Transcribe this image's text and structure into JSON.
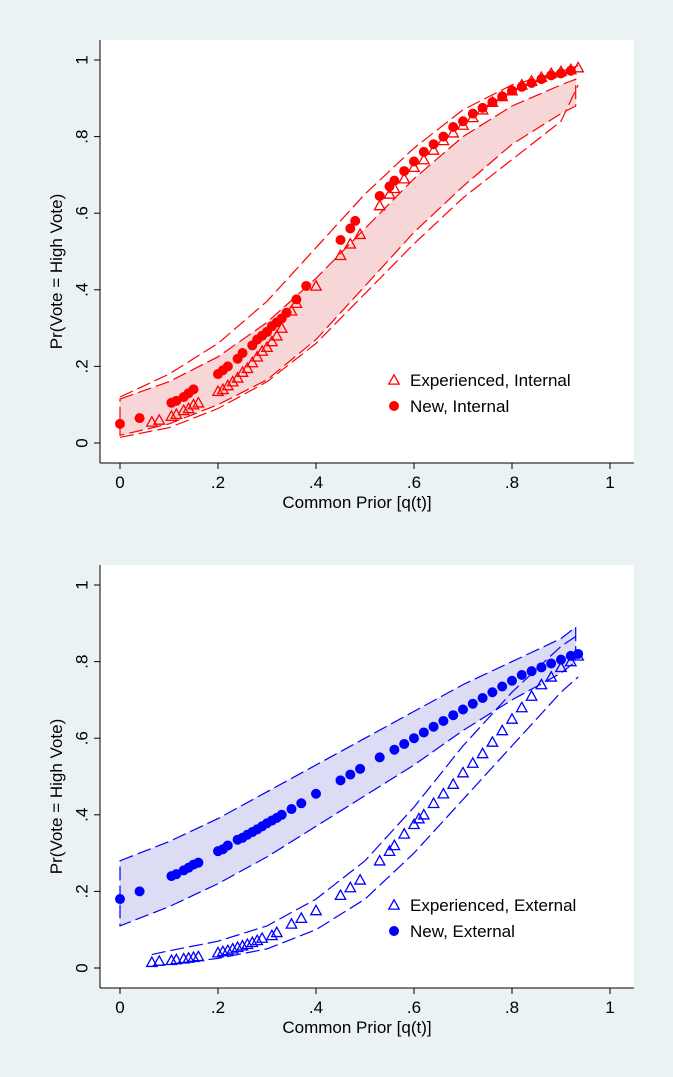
{
  "colors": {
    "page_bg": "#eaf2f3",
    "plot_bg": "#ffffff",
    "internal": "#ff0000",
    "internal_fill": "#f6d6d6",
    "external": "#0000ff",
    "external_fill": "#dcdcf4"
  },
  "chart_data": [
    {
      "type": "scatter",
      "title": "",
      "xlabel": "Common Prior [q(t)]",
      "ylabel": "Pr(Vote = High Vote)",
      "xlim": [
        0,
        1
      ],
      "ylim": [
        0,
        1
      ],
      "xticks": [
        "0",
        ".2",
        ".4",
        ".6",
        ".8",
        "1"
      ],
      "yticks": [
        "0",
        ".2",
        ".4",
        ".6",
        ".8",
        "1"
      ],
      "grid": false,
      "legend": "bottom-right",
      "color": "#ff0000",
      "series": [
        {
          "name": "Experienced, Internal",
          "marker": "triangle-open",
          "points": [
            [
              0.065,
              0.055
            ],
            [
              0.08,
              0.06
            ],
            [
              0.105,
              0.07
            ],
            [
              0.115,
              0.075
            ],
            [
              0.13,
              0.085
            ],
            [
              0.14,
              0.09
            ],
            [
              0.15,
              0.1
            ],
            [
              0.16,
              0.105
            ],
            [
              0.2,
              0.135
            ],
            [
              0.21,
              0.14
            ],
            [
              0.22,
              0.15
            ],
            [
              0.23,
              0.16
            ],
            [
              0.24,
              0.17
            ],
            [
              0.25,
              0.185
            ],
            [
              0.26,
              0.195
            ],
            [
              0.27,
              0.21
            ],
            [
              0.28,
              0.225
            ],
            [
              0.29,
              0.24
            ],
            [
              0.3,
              0.25
            ],
            [
              0.31,
              0.265
            ],
            [
              0.32,
              0.28
            ],
            [
              0.33,
              0.3
            ],
            [
              0.35,
              0.345
            ],
            [
              0.36,
              0.365
            ],
            [
              0.4,
              0.41
            ],
            [
              0.45,
              0.49
            ],
            [
              0.47,
              0.52
            ],
            [
              0.49,
              0.545
            ],
            [
              0.53,
              0.62
            ],
            [
              0.55,
              0.65
            ],
            [
              0.56,
              0.665
            ],
            [
              0.58,
              0.69
            ],
            [
              0.6,
              0.72
            ],
            [
              0.62,
              0.74
            ],
            [
              0.64,
              0.765
            ],
            [
              0.66,
              0.79
            ],
            [
              0.68,
              0.81
            ],
            [
              0.7,
              0.83
            ],
            [
              0.72,
              0.85
            ],
            [
              0.74,
              0.87
            ],
            [
              0.76,
              0.89
            ],
            [
              0.78,
              0.905
            ],
            [
              0.8,
              0.92
            ],
            [
              0.82,
              0.935
            ],
            [
              0.84,
              0.945
            ],
            [
              0.86,
              0.955
            ],
            [
              0.88,
              0.965
            ],
            [
              0.9,
              0.97
            ],
            [
              0.92,
              0.975
            ],
            [
              0.935,
              0.98
            ]
          ]
        },
        {
          "name": "New, Internal",
          "marker": "circle-filled",
          "points": [
            [
              0,
              0.05
            ],
            [
              0.04,
              0.065
            ],
            [
              0.105,
              0.105
            ],
            [
              0.115,
              0.11
            ],
            [
              0.13,
              0.12
            ],
            [
              0.14,
              0.13
            ],
            [
              0.15,
              0.14
            ],
            [
              0.2,
              0.18
            ],
            [
              0.21,
              0.19
            ],
            [
              0.22,
              0.2
            ],
            [
              0.24,
              0.22
            ],
            [
              0.25,
              0.235
            ],
            [
              0.27,
              0.255
            ],
            [
              0.28,
              0.27
            ],
            [
              0.29,
              0.28
            ],
            [
              0.3,
              0.29
            ],
            [
              0.31,
              0.305
            ],
            [
              0.32,
              0.315
            ],
            [
              0.33,
              0.325
            ],
            [
              0.34,
              0.34
            ],
            [
              0.36,
              0.375
            ],
            [
              0.38,
              0.41
            ],
            [
              0.45,
              0.53
            ],
            [
              0.47,
              0.56
            ],
            [
              0.48,
              0.58
            ],
            [
              0.53,
              0.645
            ],
            [
              0.55,
              0.67
            ],
            [
              0.56,
              0.685
            ],
            [
              0.58,
              0.71
            ],
            [
              0.6,
              0.735
            ],
            [
              0.62,
              0.76
            ],
            [
              0.64,
              0.78
            ],
            [
              0.66,
              0.8
            ],
            [
              0.68,
              0.825
            ],
            [
              0.7,
              0.84
            ],
            [
              0.72,
              0.86
            ],
            [
              0.74,
              0.875
            ],
            [
              0.76,
              0.89
            ],
            [
              0.78,
              0.905
            ],
            [
              0.8,
              0.92
            ],
            [
              0.82,
              0.93
            ],
            [
              0.84,
              0.94
            ],
            [
              0.86,
              0.95
            ],
            [
              0.88,
              0.96
            ],
            [
              0.9,
              0.965
            ],
            [
              0.92,
              0.972
            ]
          ]
        }
      ],
      "band": {
        "x": [
          0,
          0.1,
          0.2,
          0.3,
          0.4,
          0.5,
          0.6,
          0.7,
          0.8,
          0.9,
          0.93
        ],
        "upper": [
          0.115,
          0.16,
          0.225,
          0.315,
          0.43,
          0.56,
          0.69,
          0.8,
          0.88,
          0.935,
          0.95
        ],
        "lower": [
          0.02,
          0.05,
          0.1,
          0.165,
          0.27,
          0.41,
          0.55,
          0.67,
          0.78,
          0.86,
          0.88
        ]
      },
      "outer_ci": {
        "x": [
          0,
          0.1,
          0.2,
          0.3,
          0.4,
          0.5,
          0.6,
          0.7,
          0.8,
          0.9,
          0.935
        ],
        "upper": [
          0.12,
          0.18,
          0.26,
          0.37,
          0.51,
          0.65,
          0.77,
          0.87,
          0.935,
          0.97,
          0.985
        ],
        "lower": [
          0.015,
          0.04,
          0.09,
          0.16,
          0.26,
          0.39,
          0.52,
          0.64,
          0.74,
          0.84,
          0.935
        ]
      }
    },
    {
      "type": "scatter",
      "title": "",
      "xlabel": "Common Prior [q(t)]",
      "ylabel": "Pr(Vote = High Vote)",
      "xlim": [
        0,
        1
      ],
      "ylim": [
        0,
        1
      ],
      "xticks": [
        "0",
        ".2",
        ".4",
        ".6",
        ".8",
        "1"
      ],
      "yticks": [
        "0",
        ".2",
        ".4",
        ".6",
        ".8",
        "1"
      ],
      "grid": false,
      "legend": "bottom-right",
      "color": "#0000ff",
      "series": [
        {
          "name": "Experienced, External",
          "marker": "triangle-open",
          "points": [
            [
              0.065,
              0.015
            ],
            [
              0.08,
              0.018
            ],
            [
              0.105,
              0.02
            ],
            [
              0.115,
              0.022
            ],
            [
              0.13,
              0.024
            ],
            [
              0.14,
              0.026
            ],
            [
              0.15,
              0.028
            ],
            [
              0.16,
              0.03
            ],
            [
              0.2,
              0.04
            ],
            [
              0.21,
              0.043
            ],
            [
              0.22,
              0.046
            ],
            [
              0.23,
              0.05
            ],
            [
              0.24,
              0.054
            ],
            [
              0.25,
              0.058
            ],
            [
              0.26,
              0.062
            ],
            [
              0.27,
              0.067
            ],
            [
              0.28,
              0.072
            ],
            [
              0.29,
              0.078
            ],
            [
              0.31,
              0.085
            ],
            [
              0.32,
              0.093
            ],
            [
              0.35,
              0.115
            ],
            [
              0.37,
              0.13
            ],
            [
              0.4,
              0.15
            ],
            [
              0.45,
              0.19
            ],
            [
              0.47,
              0.21
            ],
            [
              0.49,
              0.23
            ],
            [
              0.53,
              0.28
            ],
            [
              0.55,
              0.305
            ],
            [
              0.56,
              0.32
            ],
            [
              0.58,
              0.35
            ],
            [
              0.6,
              0.375
            ],
            [
              0.61,
              0.39
            ],
            [
              0.62,
              0.4
            ],
            [
              0.64,
              0.43
            ],
            [
              0.66,
              0.455
            ],
            [
              0.68,
              0.48
            ],
            [
              0.7,
              0.51
            ],
            [
              0.72,
              0.535
            ],
            [
              0.74,
              0.56
            ],
            [
              0.76,
              0.59
            ],
            [
              0.78,
              0.62
            ],
            [
              0.8,
              0.65
            ],
            [
              0.82,
              0.68
            ],
            [
              0.84,
              0.71
            ],
            [
              0.86,
              0.74
            ],
            [
              0.88,
              0.76
            ],
            [
              0.9,
              0.785
            ],
            [
              0.92,
              0.8
            ],
            [
              0.935,
              0.815
            ]
          ]
        },
        {
          "name": "New, External",
          "marker": "circle-filled",
          "points": [
            [
              0,
              0.18
            ],
            [
              0.04,
              0.2
            ],
            [
              0.105,
              0.24
            ],
            [
              0.115,
              0.245
            ],
            [
              0.13,
              0.255
            ],
            [
              0.14,
              0.262
            ],
            [
              0.15,
              0.27
            ],
            [
              0.16,
              0.275
            ],
            [
              0.2,
              0.305
            ],
            [
              0.21,
              0.31
            ],
            [
              0.22,
              0.32
            ],
            [
              0.24,
              0.335
            ],
            [
              0.25,
              0.34
            ],
            [
              0.26,
              0.348
            ],
            [
              0.27,
              0.355
            ],
            [
              0.28,
              0.362
            ],
            [
              0.29,
              0.37
            ],
            [
              0.3,
              0.378
            ],
            [
              0.31,
              0.385
            ],
            [
              0.32,
              0.392
            ],
            [
              0.33,
              0.4
            ],
            [
              0.35,
              0.415
            ],
            [
              0.37,
              0.43
            ],
            [
              0.4,
              0.455
            ],
            [
              0.45,
              0.49
            ],
            [
              0.47,
              0.505
            ],
            [
              0.49,
              0.52
            ],
            [
              0.53,
              0.55
            ],
            [
              0.56,
              0.57
            ],
            [
              0.58,
              0.585
            ],
            [
              0.6,
              0.6
            ],
            [
              0.62,
              0.615
            ],
            [
              0.64,
              0.63
            ],
            [
              0.66,
              0.645
            ],
            [
              0.68,
              0.66
            ],
            [
              0.7,
              0.675
            ],
            [
              0.72,
              0.69
            ],
            [
              0.74,
              0.705
            ],
            [
              0.76,
              0.72
            ],
            [
              0.78,
              0.735
            ],
            [
              0.8,
              0.75
            ],
            [
              0.82,
              0.765
            ],
            [
              0.84,
              0.775
            ],
            [
              0.86,
              0.785
            ],
            [
              0.88,
              0.795
            ],
            [
              0.9,
              0.805
            ],
            [
              0.92,
              0.815
            ],
            [
              0.935,
              0.82
            ]
          ]
        }
      ],
      "band": {
        "x": [
          0,
          0.1,
          0.2,
          0.3,
          0.4,
          0.5,
          0.6,
          0.7,
          0.8,
          0.9,
          0.93
        ],
        "upper": [
          0.28,
          0.33,
          0.39,
          0.46,
          0.53,
          0.6,
          0.67,
          0.74,
          0.8,
          0.86,
          0.89
        ],
        "lower": [
          0.11,
          0.16,
          0.22,
          0.29,
          0.37,
          0.45,
          0.53,
          0.62,
          0.7,
          0.77,
          0.8
        ]
      },
      "outer_ci": {
        "x": [
          0.065,
          0.1,
          0.2,
          0.3,
          0.4,
          0.5,
          0.6,
          0.7,
          0.8,
          0.9,
          0.935
        ],
        "upper": [
          0.035,
          0.045,
          0.07,
          0.11,
          0.18,
          0.28,
          0.42,
          0.58,
          0.72,
          0.84,
          0.87
        ],
        "lower": [
          0.005,
          0.01,
          0.025,
          0.05,
          0.1,
          0.18,
          0.3,
          0.44,
          0.58,
          0.72,
          0.76
        ]
      }
    }
  ]
}
